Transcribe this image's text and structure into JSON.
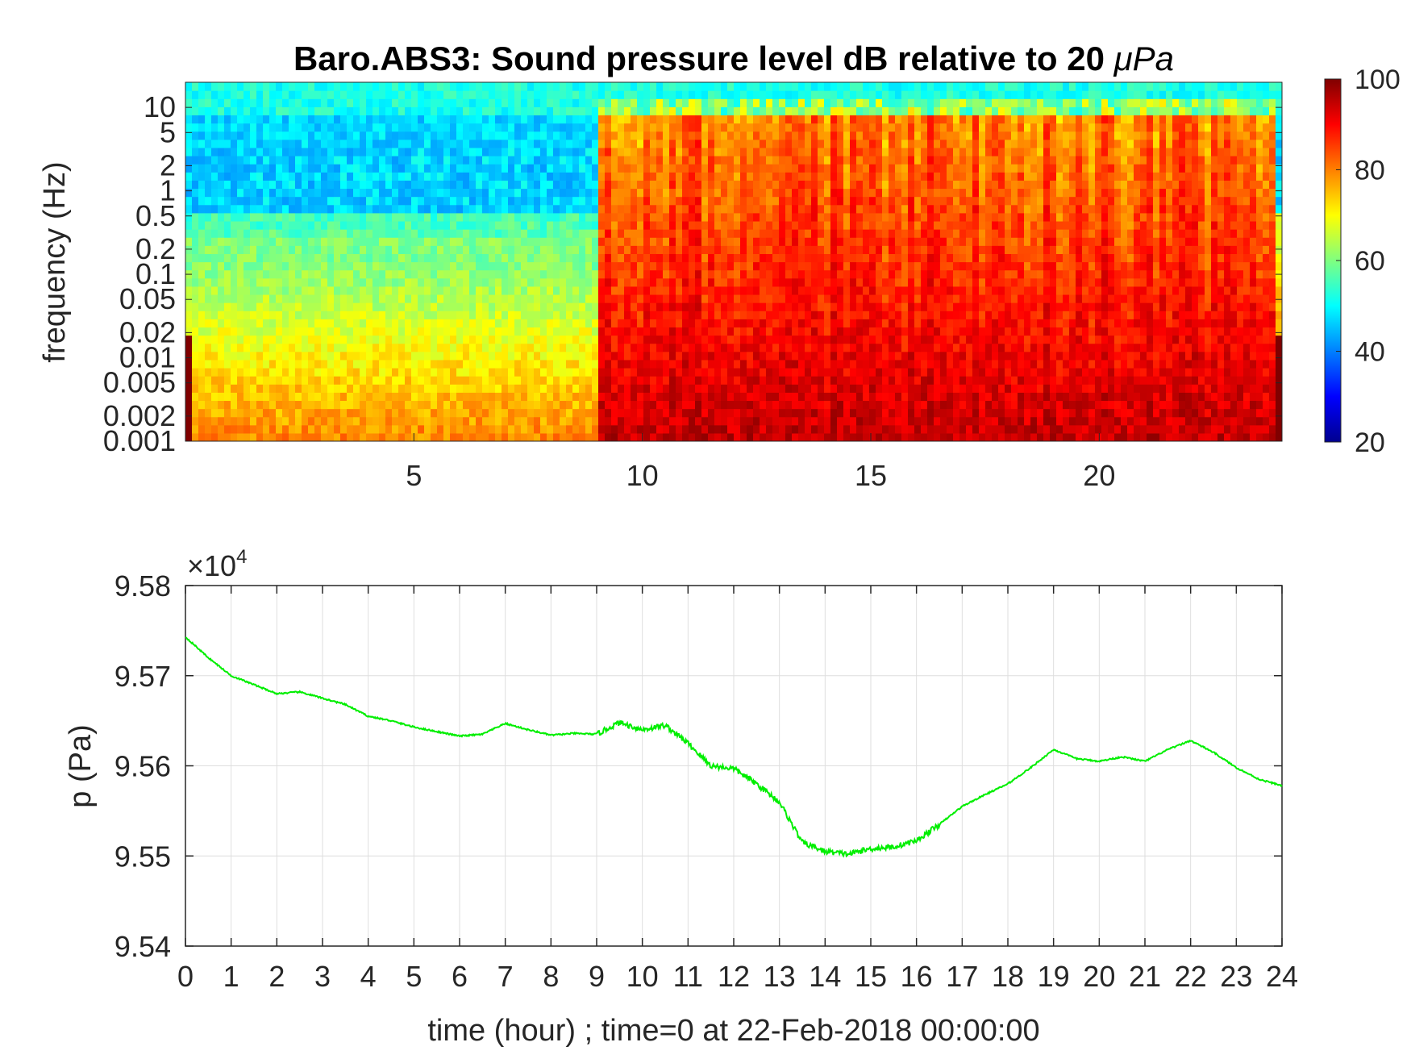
{
  "chart_data": [
    {
      "type": "heatmap",
      "title": "Baro.ABS3: Sound pressure level dB relative to 20 μPa",
      "title_prefix": "Baro.ABS3: Sound pressure level dB relative to 20 ",
      "title_unit": "μPa",
      "xlabel": "",
      "ylabel": "frequency (Hz)",
      "x_range": [
        0,
        24
      ],
      "x_ticks": [
        5,
        10,
        15,
        20
      ],
      "x_tick_labels": [
        "5",
        "10",
        "15",
        "20"
      ],
      "y_scale": "log",
      "y_range": [
        0.001,
        20
      ],
      "y_ticks": [
        0.001,
        0.002,
        0.005,
        0.01,
        0.02,
        0.05,
        0.1,
        0.2,
        0.5,
        1,
        2,
        5,
        10
      ],
      "y_tick_labels": [
        "0.001",
        "0.002",
        "0.005",
        "0.01",
        "0.02",
        "0.05",
        "0.1",
        "0.2",
        "0.5",
        "1",
        "2",
        "5",
        "10"
      ],
      "colormap": "jet",
      "colorbar": {
        "range": [
          20,
          100
        ],
        "ticks": [
          20,
          40,
          60,
          80,
          100
        ],
        "tick_labels": [
          "20",
          "40",
          "60",
          "80",
          "100"
        ]
      },
      "approx_levels": {
        "quiet_period_hours": [
          0,
          9
        ],
        "active_period_hours": [
          9,
          24
        ],
        "low_freq_db_quiet": 80,
        "low_freq_db_active": 90,
        "high_freq_db_quiet": 48,
        "high_freq_db_active": 75
      }
    },
    {
      "type": "line",
      "title": "",
      "xlabel": "time (hour) ; time=0 at 22-Feb-2018 00:00:00",
      "ylabel": "p (Pa)",
      "x_range": [
        0,
        24
      ],
      "y_range": [
        95400,
        95800
      ],
      "grid": true,
      "exponent_label": "×10",
      "exponent_power": "4",
      "x_ticks": [
        0,
        1,
        2,
        3,
        4,
        5,
        6,
        7,
        8,
        9,
        10,
        11,
        12,
        13,
        14,
        15,
        16,
        17,
        18,
        19,
        20,
        21,
        22,
        23,
        24
      ],
      "x_tick_labels": [
        "0",
        "1",
        "2",
        "3",
        "4",
        "5",
        "6",
        "7",
        "8",
        "9",
        "10",
        "11",
        "12",
        "13",
        "14",
        "15",
        "16",
        "17",
        "18",
        "19",
        "20",
        "21",
        "22",
        "23",
        "24"
      ],
      "y_ticks": [
        95400,
        95500,
        95600,
        95700,
        95800
      ],
      "y_tick_labels": [
        "9.54",
        "9.55",
        "9.56",
        "9.57",
        "9.58"
      ],
      "series": [
        {
          "color": "#00ee00",
          "x": [
            0,
            0.5,
            1,
            1.5,
            2,
            2.5,
            3,
            3.5,
            4,
            4.5,
            5,
            5.5,
            6,
            6.5,
            7,
            7.5,
            8,
            8.5,
            9,
            9.5,
            10,
            10.5,
            11,
            11.5,
            12,
            12.5,
            13,
            13.5,
            14,
            14.5,
            15,
            15.5,
            16,
            16.5,
            17,
            17.5,
            18,
            18.5,
            19,
            19.5,
            20,
            20.5,
            21,
            21.5,
            22,
            22.5,
            23,
            23.5,
            24
          ],
          "y": [
            95743,
            95720,
            95700,
            95690,
            95680,
            95682,
            95675,
            95668,
            95655,
            95650,
            95643,
            95638,
            95633,
            95635,
            95647,
            95640,
            95634,
            95636,
            95635,
            95648,
            95640,
            95645,
            95625,
            95600,
            95597,
            95580,
            95560,
            95515,
            95505,
            95502,
            95508,
            95510,
            95517,
            95535,
            95555,
            95568,
            95580,
            95598,
            95618,
            95608,
            95605,
            95610,
            95605,
            95618,
            95628,
            95615,
            95598,
            95585,
            95578
          ]
        }
      ]
    }
  ]
}
